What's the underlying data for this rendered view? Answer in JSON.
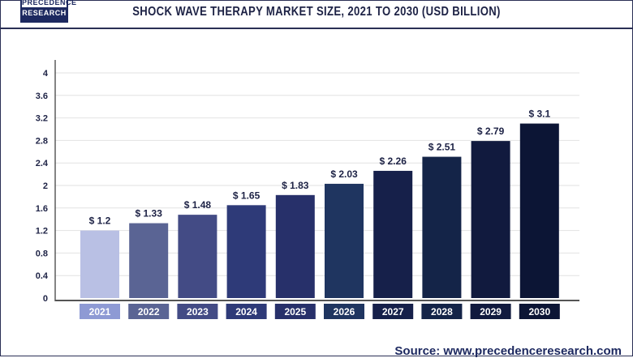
{
  "header": {
    "logo_line1": "PRECEDENCE",
    "logo_line2": "RESEARCH",
    "title": "SHOCK WAVE THERAPY MARKET SIZE, 2021 TO 2030 (USD BILLION)"
  },
  "source": "Source: www.precedenceresearch.com",
  "chart_data": {
    "type": "bar",
    "title": "SHOCK WAVE THERAPY MARKET SIZE, 2021 TO 2030 (USD BILLION)",
    "categories": [
      "2021",
      "2022",
      "2023",
      "2024",
      "2025",
      "2026",
      "2027",
      "2028",
      "2029",
      "2030"
    ],
    "values": [
      1.2,
      1.33,
      1.48,
      1.65,
      1.83,
      2.03,
      2.26,
      2.51,
      2.79,
      3.1
    ],
    "data_labels": [
      "$ 1.2",
      "$ 1.33",
      "$ 1.48",
      "$ 1.65",
      "$ 1.83",
      "$ 2.03",
      "$ 2.26",
      "$ 2.51",
      "$ 2.79",
      "$ 3.1"
    ],
    "colors": [
      "#b9c0e4",
      "#5a6494",
      "#434b85",
      "#2e3a78",
      "#27306a",
      "#1f3560",
      "#16204a",
      "#142448",
      "#111a3e",
      "#0c1535"
    ],
    "yticks": [
      "0",
      "0.4",
      "0.8",
      "1.2",
      "1.6",
      "2",
      "2.4",
      "2.8",
      "3.2",
      "3.6",
      "4"
    ],
    "ylim": [
      0,
      4
    ],
    "grid": true,
    "xlabel": "",
    "ylabel": ""
  }
}
